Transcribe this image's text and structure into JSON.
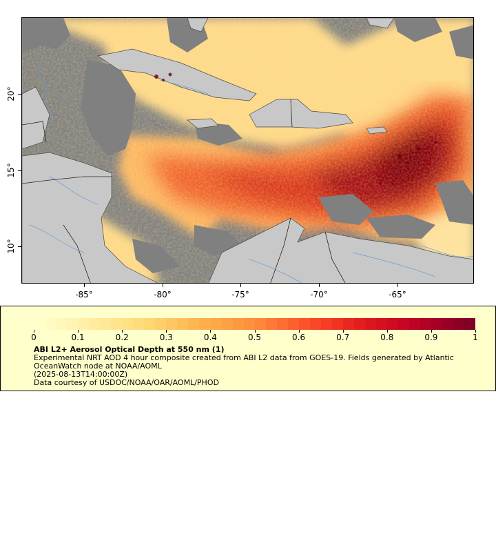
{
  "map": {
    "x_ticks": [
      "-85°",
      "-80°",
      "-75°",
      "-70°",
      "-65°"
    ],
    "y_ticks": [
      "20°",
      "15°",
      "10°"
    ],
    "colors": {
      "land": "#c8c8c8",
      "no_data": "#808080",
      "coast": "#4a4a4a",
      "rivers": "#6a9fd4",
      "borders": "#222222"
    }
  },
  "legend": {
    "ticks": [
      "0",
      "0.1",
      "0.2",
      "0.3",
      "0.4",
      "0.5",
      "0.6",
      "0.7",
      "0.8",
      "0.9",
      "1"
    ],
    "range": [
      0,
      1
    ],
    "colormap": [
      "#ffffcc",
      "#ffeda0",
      "#fed976",
      "#feb24c",
      "#fd8d3c",
      "#fc4e2a",
      "#e31a1c",
      "#bd0026",
      "#800026"
    ],
    "title": "ABI L2+ Aerosol Optical Depth at 550 nm (1)",
    "description": "Experimental NRT AOD 4 hour composite created from ABI L2 data from GOES-19. Fields generated by Atlantic OceanWatch node at NOAA/AOML",
    "timestamp": "(2025-08-13T14:00:00Z)",
    "credit": "Data courtesy of USDOC/NOAA/OAR/AOML/PHOD"
  }
}
